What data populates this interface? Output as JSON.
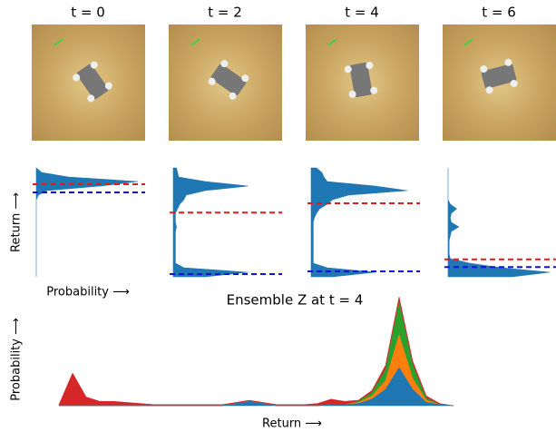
{
  "frames": [
    {
      "title": "t = 0"
    },
    {
      "title": "t = 2"
    },
    {
      "title": "t = 4"
    },
    {
      "title": "t = 6"
    }
  ],
  "return_distributions": {
    "y_label": "Return ⟶",
    "x_label": "Probability ⟶",
    "color": "#1f77b4",
    "red_line_color": "#e31a1c",
    "blue_line_color": "#1010e0",
    "panels": [
      {
        "density": [
          0,
          0,
          0,
          0,
          0,
          0,
          0,
          0,
          0,
          0,
          0,
          0,
          0,
          0,
          0,
          0,
          0,
          0,
          0.02,
          0.1,
          0.6,
          0.95,
          0.3,
          0.05,
          0
        ],
        "red_line": 0.85,
        "blue_line": 0.775
      },
      {
        "density": [
          0.3,
          0.7,
          0.1,
          0.02,
          0.02,
          0.02,
          0.02,
          0.02,
          0.02,
          0.02,
          0.02,
          0.03,
          0.02,
          0.02,
          0.02,
          0.04,
          0.06,
          0.1,
          0.12,
          0.3,
          0.7,
          0.3,
          0.05,
          0.04,
          0.03
        ],
        "red_line": 0.59,
        "blue_line": 0.025
      },
      {
        "density": [
          0.2,
          0.6,
          0.15,
          0.02,
          0.02,
          0.02,
          0.02,
          0.02,
          0.02,
          0.02,
          0.02,
          0.02,
          0.02,
          0.03,
          0.05,
          0.08,
          0.15,
          0.2,
          0.35,
          0.9,
          0.6,
          0.15,
          0.12,
          0.1,
          0.05
        ],
        "red_line": 0.675,
        "blue_line": 0.05
      },
      {
        "density": [
          0.6,
          0.95,
          0.5,
          0.2,
          0.02,
          0.01,
          0.01,
          0.01,
          0.01,
          0.02,
          0.03,
          0.1,
          0.03,
          0.02,
          0.03,
          0.08,
          0.02,
          0,
          0,
          0,
          0,
          0,
          0,
          0,
          0
        ],
        "red_line": 0.16,
        "blue_line": 0.09
      }
    ]
  },
  "ensemble": {
    "title": "Ensemble Z at t = 4",
    "x_label": "Return ⟶",
    "y_label": "Probability ⟶",
    "series": [
      {
        "color": "#1f77b4",
        "values": [
          0,
          0,
          0,
          0,
          0,
          0,
          0,
          0,
          0,
          0,
          0,
          0,
          0,
          0.02,
          0.04,
          0.02,
          0,
          0,
          0,
          0,
          0.01,
          0.01,
          0.02,
          0.06,
          0.15,
          0.35,
          0.15,
          0.03,
          0.01,
          0
        ]
      },
      {
        "color": "#ff7f0e",
        "values": [
          0,
          0,
          0,
          0,
          0,
          0,
          0,
          0,
          0,
          0,
          0,
          0,
          0,
          0,
          0,
          0,
          0,
          0,
          0,
          0,
          0,
          0,
          0.01,
          0.03,
          0.08,
          0.3,
          0.1,
          0.02,
          0,
          0
        ]
      },
      {
        "color": "#2ca02c",
        "values": [
          0,
          0,
          0,
          0,
          0,
          0,
          0,
          0,
          0,
          0,
          0,
          0,
          0,
          0,
          0,
          0,
          0,
          0,
          0,
          0,
          0,
          0,
          0.01,
          0.03,
          0.1,
          0.3,
          0.12,
          0.02,
          0,
          0
        ]
      },
      {
        "color": "#d62728",
        "values": [
          0.01,
          0.3,
          0.08,
          0.04,
          0.04,
          0.03,
          0.02,
          0.01,
          0.01,
          0.01,
          0.01,
          0.01,
          0.01,
          0.01,
          0.01,
          0.01,
          0.01,
          0.01,
          0.01,
          0.02,
          0.05,
          0.03,
          0.01,
          0.02,
          0.04,
          0.05,
          0.04,
          0.02,
          0.01,
          0
        ]
      }
    ]
  }
}
